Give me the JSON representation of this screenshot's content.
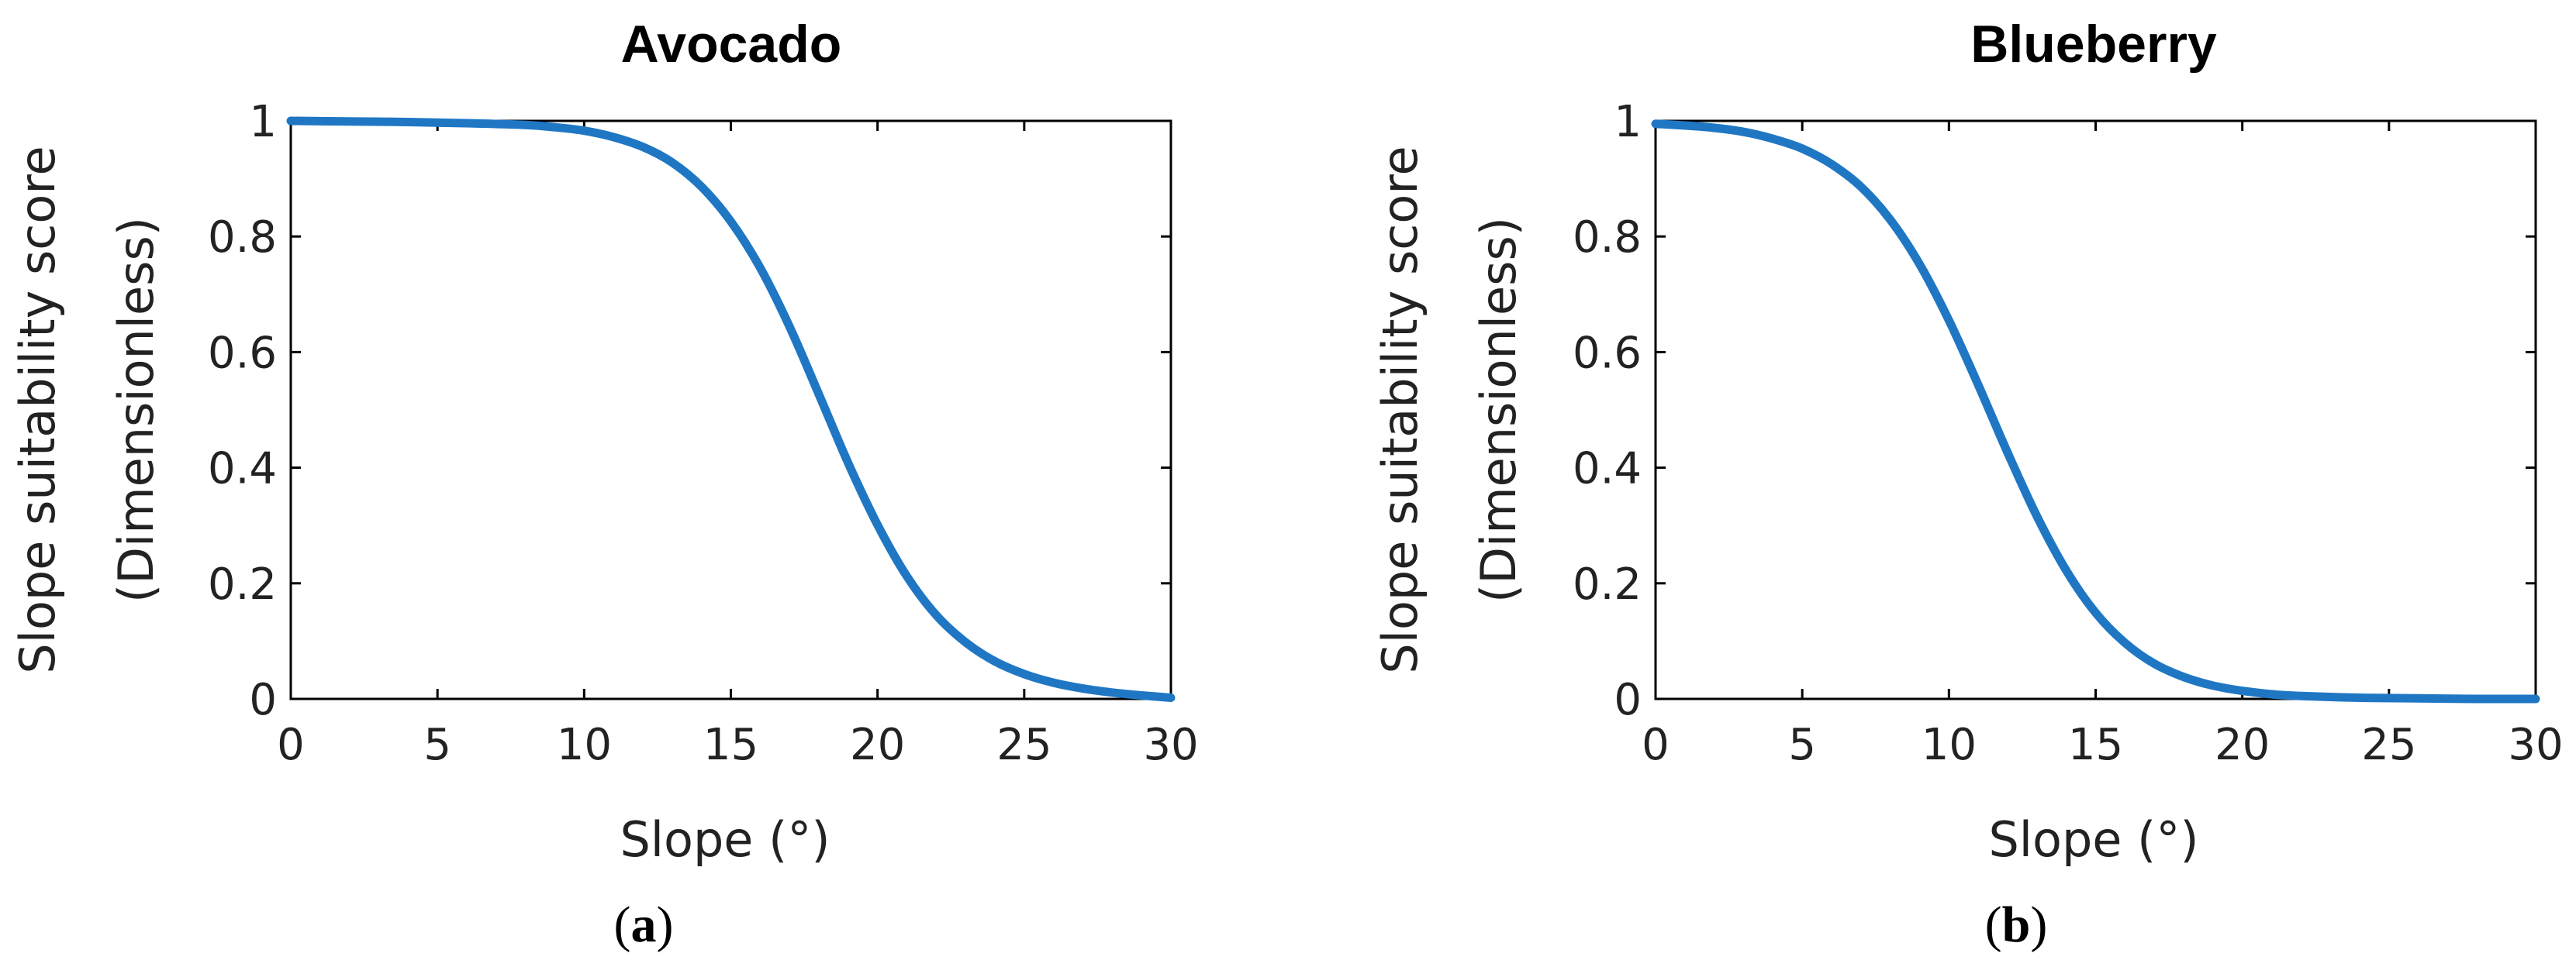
{
  "chart_data": [
    {
      "type": "line",
      "title": "Avocado",
      "xlabel": "Slope (°)",
      "ylabel_lines": [
        "Slope suitability score",
        "(Dimensionless)"
      ],
      "panel_label": {
        "open": "(",
        "letter": "a",
        "close": ")"
      },
      "xlim": [
        0,
        30
      ],
      "ylim": [
        0,
        1
      ],
      "xticks": [
        0,
        5,
        10,
        15,
        20,
        25,
        30
      ],
      "xtick_labels": [
        "0",
        "5",
        "10",
        "15",
        "20",
        "25",
        "30"
      ],
      "yticks": [
        0,
        0.2,
        0.4,
        0.6,
        0.8,
        1
      ],
      "ytick_labels": [
        "0",
        "0.2",
        "0.4",
        "0.6",
        "0.8",
        "1"
      ],
      "grid": false,
      "color": "#1f77c4",
      "series": [
        {
          "x": [
            0,
            2,
            4,
            6,
            8,
            9,
            10,
            11,
            12,
            13,
            14,
            15,
            16,
            17,
            18,
            19,
            20,
            21,
            22,
            23,
            24,
            25,
            26,
            27,
            28,
            29,
            30
          ],
          "y": [
            1.0,
            0.999,
            0.998,
            0.996,
            0.993,
            0.989,
            0.983,
            0.972,
            0.955,
            0.928,
            0.886,
            0.826,
            0.746,
            0.644,
            0.527,
            0.408,
            0.301,
            0.212,
            0.145,
            0.098,
            0.065,
            0.043,
            0.028,
            0.018,
            0.011,
            0.006,
            0.002
          ]
        }
      ]
    },
    {
      "type": "line",
      "title": "Blueberry",
      "xlabel": "Slope (°)",
      "ylabel_lines": [
        "Slope suitability score",
        "(Dimensionless)"
      ],
      "panel_label": {
        "open": "(",
        "letter": "b",
        "close": ")"
      },
      "xlim": [
        0,
        30
      ],
      "ylim": [
        0,
        1
      ],
      "xticks": [
        0,
        5,
        10,
        15,
        20,
        25,
        30
      ],
      "xtick_labels": [
        "0",
        "5",
        "10",
        "15",
        "20",
        "25",
        "30"
      ],
      "yticks": [
        0,
        0.2,
        0.4,
        0.6,
        0.8,
        1
      ],
      "ytick_labels": [
        "0",
        "0.2",
        "0.4",
        "0.6",
        "0.8",
        "1"
      ],
      "grid": false,
      "color": "#1f77c4",
      "series": [
        {
          "x": [
            0,
            1,
            2,
            3,
            4,
            5,
            6,
            7,
            8,
            9,
            10,
            11,
            12,
            13,
            14,
            15,
            16,
            17,
            18,
            19,
            20,
            21,
            22,
            24,
            26,
            28,
            30
          ],
          "y": [
            0.995,
            0.992,
            0.988,
            0.981,
            0.969,
            0.952,
            0.925,
            0.886,
            0.829,
            0.752,
            0.655,
            0.543,
            0.426,
            0.316,
            0.222,
            0.149,
            0.097,
            0.061,
            0.038,
            0.023,
            0.014,
            0.008,
            0.005,
            0.002,
            0.001,
            0.0,
            0.0
          ]
        }
      ]
    }
  ]
}
